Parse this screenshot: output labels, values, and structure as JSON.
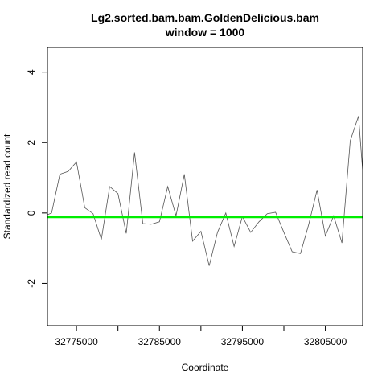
{
  "chart_data": {
    "type": "line",
    "title": "Lg2.sorted.bam.bam.GoldenDelicious.bam",
    "subtitle": "window = 1000",
    "xlabel": "Coordinate",
    "ylabel": "Standardized read count",
    "xlim": [
      32771500,
      32809500
    ],
    "ylim": [
      -3.2,
      4.7
    ],
    "x_ticks": [
      32775000,
      32780000,
      32785000,
      32790000,
      32795000,
      32800000,
      32805000
    ],
    "x_tick_labels": [
      "32775000",
      "",
      "32785000",
      "",
      "32795000",
      "",
      "32805000"
    ],
    "y_ticks": [
      -2,
      0,
      2,
      4
    ],
    "y_tick_labels": [
      "-2",
      "0",
      "2",
      "4"
    ],
    "grid": false,
    "legend": "none",
    "series": [
      {
        "color": "#555555",
        "x": [
          32771500,
          32772000,
          32773000,
          32774000,
          32775000,
          32776000,
          32777000,
          32778000,
          32779000,
          32780000,
          32781000,
          32782000,
          32783000,
          32784000,
          32785000,
          32786000,
          32787000,
          32788000,
          32789000,
          32790000,
          32791000,
          32792000,
          32793000,
          32794000,
          32795000,
          32796000,
          32797000,
          32798000,
          32799000,
          32800000,
          32801000,
          32802000,
          32803000,
          32804000,
          32805000,
          32806000,
          32807000,
          32808000,
          32809000,
          32810000,
          32811000
        ],
        "y": [
          -0.05,
          0.0,
          1.1,
          1.18,
          1.45,
          0.15,
          -0.02,
          -0.75,
          0.75,
          0.55,
          -0.58,
          1.72,
          -0.3,
          -0.32,
          -0.25,
          0.75,
          -0.08,
          1.1,
          -0.8,
          -0.52,
          -1.5,
          -0.55,
          0.0,
          -0.95,
          -0.1,
          -0.55,
          -0.25,
          -0.02,
          0.02,
          -0.55,
          -1.1,
          -1.15,
          -0.32,
          0.65,
          -0.65,
          -0.08,
          -0.85,
          2.05,
          2.75,
          -0.35,
          0.45
        ]
      }
    ],
    "hline": {
      "y": -0.12,
      "color": "#00ee00"
    }
  }
}
